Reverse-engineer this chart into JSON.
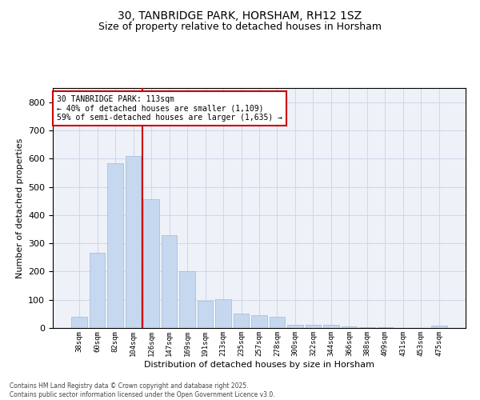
{
  "title1": "30, TANBRIDGE PARK, HORSHAM, RH12 1SZ",
  "title2": "Size of property relative to detached houses in Horsham",
  "xlabel": "Distribution of detached houses by size in Horsham",
  "ylabel": "Number of detached properties",
  "categories": [
    "38sqm",
    "60sqm",
    "82sqm",
    "104sqm",
    "126sqm",
    "147sqm",
    "169sqm",
    "191sqm",
    "213sqm",
    "235sqm",
    "257sqm",
    "278sqm",
    "300sqm",
    "322sqm",
    "344sqm",
    "366sqm",
    "388sqm",
    "409sqm",
    "431sqm",
    "453sqm",
    "475sqm"
  ],
  "values": [
    40,
    265,
    585,
    610,
    455,
    330,
    200,
    95,
    103,
    50,
    45,
    40,
    12,
    12,
    10,
    5,
    3,
    2,
    1,
    1,
    8
  ],
  "bar_color": "#c5d8f0",
  "bar_edge_color": "#a0b8d8",
  "red_line_x": 3.5,
  "ylim": [
    0,
    850
  ],
  "yticks": [
    0,
    100,
    200,
    300,
    400,
    500,
    600,
    700,
    800
  ],
  "annotation_title": "30 TANBRIDGE PARK: 113sqm",
  "annotation_line1": "← 40% of detached houses are smaller (1,109)",
  "annotation_line2": "59% of semi-detached houses are larger (1,635) →",
  "annotation_box_color": "#ffffff",
  "annotation_box_edge": "#cc0000",
  "grid_color": "#d0d8e8",
  "background_color": "#eef2f8",
  "footer1": "Contains HM Land Registry data © Crown copyright and database right 2025.",
  "footer2": "Contains public sector information licensed under the Open Government Licence v3.0."
}
